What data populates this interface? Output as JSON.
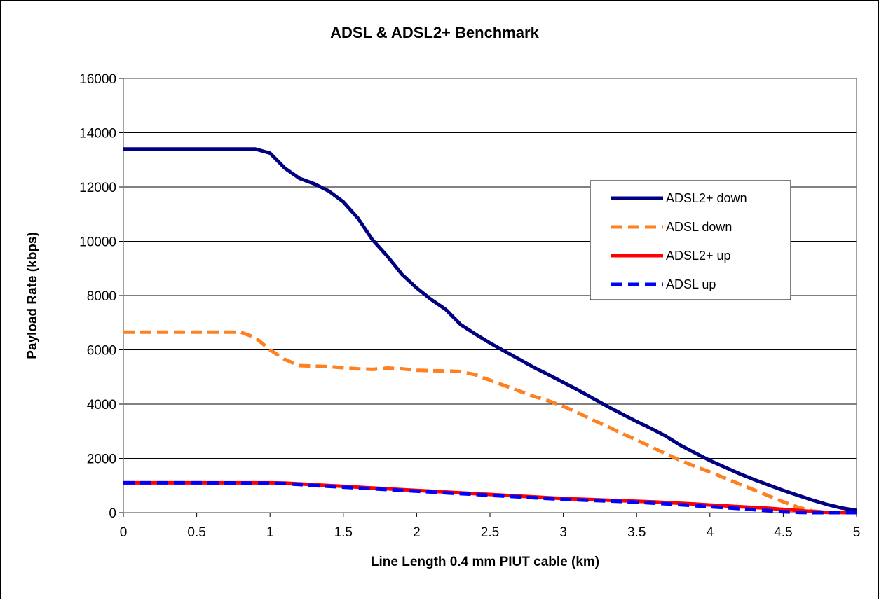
{
  "chart_data": {
    "type": "line",
    "title": "ADSL & ADSL2+ Benchmark",
    "xlabel": "Line Length 0.4 mm PIUT cable (km)",
    "ylabel": "Payload Rate (kbps)",
    "xlim": [
      0,
      5
    ],
    "ylim": [
      0,
      16000
    ],
    "x_ticks": [
      "0",
      "0.5",
      "1",
      "1.5",
      "2",
      "2.5",
      "3",
      "3.5",
      "4",
      "4.5",
      "5"
    ],
    "y_ticks": [
      "0",
      "2000",
      "4000",
      "6000",
      "8000",
      "10000",
      "12000",
      "14000",
      "16000"
    ],
    "grid": "horizontal",
    "legend_position": "right",
    "series": [
      {
        "name": "ADSL2+ down",
        "color": "#000080",
        "style": "solid",
        "points": [
          [
            0,
            13400
          ],
          [
            0.5,
            13400
          ],
          [
            0.9,
            13400
          ],
          [
            1.0,
            13250
          ],
          [
            1.1,
            12700
          ],
          [
            1.2,
            12320
          ],
          [
            1.3,
            12120
          ],
          [
            1.4,
            11850
          ],
          [
            1.5,
            11450
          ],
          [
            1.6,
            10850
          ],
          [
            1.7,
            10050
          ],
          [
            1.8,
            9450
          ],
          [
            1.9,
            8780
          ],
          [
            2.0,
            8280
          ],
          [
            2.1,
            7850
          ],
          [
            2.2,
            7480
          ],
          [
            2.3,
            6930
          ],
          [
            2.4,
            6580
          ],
          [
            2.5,
            6250
          ],
          [
            2.6,
            5950
          ],
          [
            2.7,
            5650
          ],
          [
            2.8,
            5350
          ],
          [
            2.9,
            5080
          ],
          [
            3.0,
            4800
          ],
          [
            3.1,
            4520
          ],
          [
            3.2,
            4220
          ],
          [
            3.3,
            3920
          ],
          [
            3.4,
            3640
          ],
          [
            3.5,
            3360
          ],
          [
            3.6,
            3100
          ],
          [
            3.7,
            2820
          ],
          [
            3.8,
            2480
          ],
          [
            3.9,
            2200
          ],
          [
            4.0,
            1920
          ],
          [
            4.1,
            1680
          ],
          [
            4.2,
            1440
          ],
          [
            4.3,
            1220
          ],
          [
            4.4,
            1020
          ],
          [
            4.5,
            820
          ],
          [
            4.6,
            640
          ],
          [
            4.7,
            460
          ],
          [
            4.8,
            300
          ],
          [
            4.9,
            170
          ],
          [
            5.0,
            80
          ]
        ]
      },
      {
        "name": "ADSL down",
        "color": "#FF8020",
        "style": "dashed",
        "points": [
          [
            0,
            6650
          ],
          [
            0.5,
            6650
          ],
          [
            0.8,
            6650
          ],
          [
            0.9,
            6450
          ],
          [
            1.0,
            6000
          ],
          [
            1.1,
            5650
          ],
          [
            1.2,
            5420
          ],
          [
            1.3,
            5400
          ],
          [
            1.4,
            5380
          ],
          [
            1.5,
            5340
          ],
          [
            1.6,
            5300
          ],
          [
            1.7,
            5280
          ],
          [
            1.8,
            5330
          ],
          [
            1.9,
            5300
          ],
          [
            2.0,
            5250
          ],
          [
            2.1,
            5230
          ],
          [
            2.2,
            5220
          ],
          [
            2.3,
            5200
          ],
          [
            2.4,
            5080
          ],
          [
            2.5,
            4880
          ],
          [
            2.6,
            4680
          ],
          [
            2.7,
            4480
          ],
          [
            2.8,
            4280
          ],
          [
            2.9,
            4120
          ],
          [
            3.0,
            3920
          ],
          [
            3.1,
            3680
          ],
          [
            3.2,
            3420
          ],
          [
            3.3,
            3180
          ],
          [
            3.4,
            2920
          ],
          [
            3.5,
            2680
          ],
          [
            3.6,
            2420
          ],
          [
            3.7,
            2170
          ],
          [
            3.8,
            1920
          ],
          [
            3.9,
            1700
          ],
          [
            4.0,
            1500
          ],
          [
            4.1,
            1280
          ],
          [
            4.2,
            1060
          ],
          [
            4.3,
            840
          ],
          [
            4.4,
            620
          ],
          [
            4.5,
            400
          ],
          [
            4.6,
            200
          ],
          [
            4.7,
            60
          ],
          [
            4.8,
            10
          ],
          [
            5.0,
            0
          ]
        ]
      },
      {
        "name": "ADSL2+ up",
        "color": "#FF0000",
        "style": "solid",
        "points": [
          [
            0,
            1100
          ],
          [
            0.5,
            1100
          ],
          [
            1.0,
            1100
          ],
          [
            1.1,
            1090
          ],
          [
            1.2,
            1060
          ],
          [
            1.3,
            1030
          ],
          [
            1.4,
            1000
          ],
          [
            1.5,
            970
          ],
          [
            1.6,
            940
          ],
          [
            1.7,
            910
          ],
          [
            1.8,
            880
          ],
          [
            1.9,
            850
          ],
          [
            2.0,
            820
          ],
          [
            2.1,
            790
          ],
          [
            2.2,
            760
          ],
          [
            2.3,
            730
          ],
          [
            2.4,
            700
          ],
          [
            2.5,
            670
          ],
          [
            2.6,
            640
          ],
          [
            2.7,
            610
          ],
          [
            2.8,
            580
          ],
          [
            2.9,
            550
          ],
          [
            3.0,
            520
          ],
          [
            3.1,
            500
          ],
          [
            3.2,
            480
          ],
          [
            3.3,
            460
          ],
          [
            3.4,
            440
          ],
          [
            3.5,
            420
          ],
          [
            3.6,
            400
          ],
          [
            3.7,
            375
          ],
          [
            3.8,
            345
          ],
          [
            3.9,
            315
          ],
          [
            4.0,
            280
          ],
          [
            4.1,
            250
          ],
          [
            4.2,
            220
          ],
          [
            4.3,
            190
          ],
          [
            4.4,
            160
          ],
          [
            4.5,
            120
          ],
          [
            4.6,
            80
          ],
          [
            4.7,
            40
          ],
          [
            4.8,
            10
          ],
          [
            5.0,
            0
          ]
        ]
      },
      {
        "name": "ADSL up",
        "color": "#0000FF",
        "style": "dashed",
        "points": [
          [
            0,
            1100
          ],
          [
            0.5,
            1100
          ],
          [
            1.0,
            1090
          ],
          [
            1.1,
            1070
          ],
          [
            1.2,
            1040
          ],
          [
            1.3,
            1000
          ],
          [
            1.4,
            970
          ],
          [
            1.5,
            940
          ],
          [
            1.6,
            910
          ],
          [
            1.7,
            880
          ],
          [
            1.8,
            850
          ],
          [
            1.9,
            820
          ],
          [
            2.0,
            790
          ],
          [
            2.1,
            760
          ],
          [
            2.2,
            730
          ],
          [
            2.3,
            700
          ],
          [
            2.4,
            670
          ],
          [
            2.5,
            640
          ],
          [
            2.6,
            610
          ],
          [
            2.7,
            580
          ],
          [
            2.8,
            550
          ],
          [
            2.9,
            520
          ],
          [
            3.0,
            490
          ],
          [
            3.1,
            470
          ],
          [
            3.2,
            450
          ],
          [
            3.3,
            430
          ],
          [
            3.4,
            410
          ],
          [
            3.5,
            385
          ],
          [
            3.6,
            355
          ],
          [
            3.7,
            325
          ],
          [
            3.8,
            290
          ],
          [
            3.9,
            255
          ],
          [
            4.0,
            220
          ],
          [
            4.1,
            185
          ],
          [
            4.2,
            150
          ],
          [
            4.3,
            110
          ],
          [
            4.4,
            70
          ],
          [
            4.5,
            30
          ],
          [
            4.6,
            10
          ],
          [
            4.7,
            0
          ],
          [
            5.0,
            0
          ]
        ]
      }
    ]
  }
}
